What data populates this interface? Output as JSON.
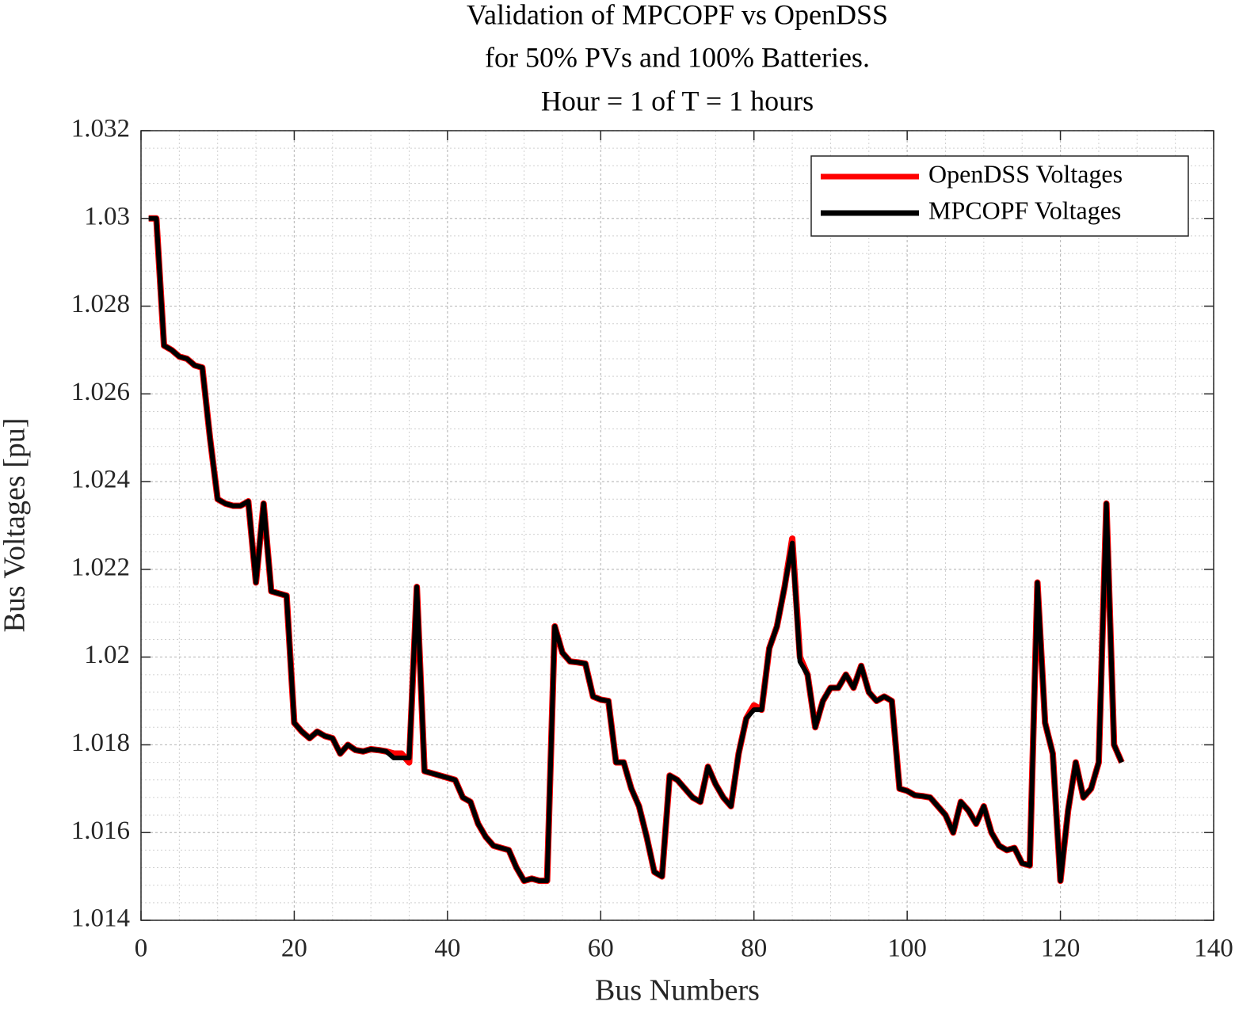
{
  "chart_data": {
    "type": "line",
    "title": [
      "Validation of MPCOPF vs OpenDSS",
      "for 50% PVs and 100% Batteries.",
      "Hour = 1 of T = 1 hours"
    ],
    "xlabel": "Bus Numbers",
    "ylabel": "Bus Voltages [pu]",
    "x": [
      1,
      2,
      3,
      4,
      5,
      6,
      7,
      8,
      9,
      10,
      11,
      12,
      13,
      14,
      15,
      16,
      17,
      18,
      19,
      20,
      21,
      22,
      23,
      24,
      25,
      26,
      27,
      28,
      29,
      30,
      31,
      32,
      33,
      34,
      35,
      36,
      37,
      38,
      39,
      40,
      41,
      42,
      43,
      44,
      45,
      46,
      47,
      48,
      49,
      50,
      51,
      52,
      53,
      54,
      55,
      56,
      57,
      58,
      59,
      60,
      61,
      62,
      63,
      64,
      65,
      66,
      67,
      68,
      69,
      70,
      71,
      72,
      73,
      74,
      75,
      76,
      77,
      78,
      79,
      80,
      81,
      82,
      83,
      84,
      85,
      86,
      87,
      88,
      89,
      90,
      91,
      92,
      93,
      94,
      95,
      96,
      97,
      98,
      99,
      100,
      101,
      102,
      103,
      104,
      105,
      106,
      107,
      108,
      109,
      110,
      111,
      112,
      113,
      114,
      115,
      116,
      117,
      118,
      119,
      120,
      121,
      122,
      123,
      124,
      125,
      126,
      127,
      128
    ],
    "series": [
      {
        "name": "OpenDSS Voltages",
        "color": "#ff0000",
        "values": [
          1.03,
          1.03,
          1.0271,
          1.027,
          1.02685,
          1.0268,
          1.02665,
          1.0266,
          1.025,
          1.0236,
          1.0235,
          1.02345,
          1.02345,
          1.02355,
          1.0217,
          1.0235,
          1.0215,
          1.02145,
          1.0214,
          1.0185,
          1.0183,
          1.01815,
          1.0183,
          1.0182,
          1.01815,
          1.0178,
          1.018,
          1.01788,
          1.01785,
          1.0179,
          1.01788,
          1.01785,
          1.0178,
          1.0178,
          1.0176,
          1.0216,
          1.0174,
          1.01735,
          1.0173,
          1.01725,
          1.0172,
          1.0168,
          1.0167,
          1.0162,
          1.0159,
          1.0157,
          1.01565,
          1.0156,
          1.0152,
          1.0149,
          1.01495,
          1.0149,
          1.0149,
          1.0207,
          1.0201,
          1.0199,
          1.01988,
          1.01985,
          1.0191,
          1.01903,
          1.019,
          1.0176,
          1.0176,
          1.017,
          1.0166,
          1.0159,
          1.0151,
          1.015,
          1.0173,
          1.0172,
          1.017,
          1.0168,
          1.0167,
          1.0175,
          1.0171,
          1.0168,
          1.0166,
          1.0178,
          1.0186,
          1.0189,
          1.0188,
          1.0202,
          1.0207,
          1.0216,
          1.0227,
          1.02,
          1.0196,
          1.0184,
          1.019,
          1.0193,
          1.0193,
          1.0196,
          1.0193,
          1.0198,
          1.0192,
          1.019,
          1.0191,
          1.019,
          1.017,
          1.01695,
          1.01685,
          1.01683,
          1.0168,
          1.0166,
          1.0164,
          1.016,
          1.0167,
          1.0165,
          1.0162,
          1.0166,
          1.016,
          1.0157,
          1.0156,
          1.01565,
          1.0153,
          1.01525,
          1.0217,
          1.0185,
          1.0178,
          1.0149,
          1.0165,
          1.0176,
          1.0168,
          1.017,
          1.0176,
          1.0235,
          1.018,
          1.0176
        ]
      },
      {
        "name": "MPCOPF Voltages",
        "color": "#000000",
        "values": [
          1.03,
          1.03,
          1.0271,
          1.027,
          1.02685,
          1.0268,
          1.02665,
          1.0266,
          1.025,
          1.0236,
          1.0235,
          1.02345,
          1.02345,
          1.02355,
          1.0217,
          1.0235,
          1.0215,
          1.02145,
          1.0214,
          1.0185,
          1.0183,
          1.01815,
          1.0183,
          1.0182,
          1.01815,
          1.0178,
          1.018,
          1.01788,
          1.01785,
          1.0179,
          1.01788,
          1.01785,
          1.0177,
          1.0177,
          1.0177,
          1.0216,
          1.0174,
          1.01735,
          1.0173,
          1.01725,
          1.0172,
          1.0168,
          1.0167,
          1.0162,
          1.0159,
          1.0157,
          1.01565,
          1.0156,
          1.0152,
          1.0149,
          1.01495,
          1.0149,
          1.0149,
          1.0207,
          1.0201,
          1.0199,
          1.01988,
          1.01985,
          1.0191,
          1.01903,
          1.019,
          1.0176,
          1.0176,
          1.017,
          1.0166,
          1.0159,
          1.0151,
          1.015,
          1.0173,
          1.0172,
          1.017,
          1.0168,
          1.0167,
          1.0175,
          1.0171,
          1.0168,
          1.0166,
          1.0178,
          1.0186,
          1.0188,
          1.0188,
          1.0202,
          1.0207,
          1.0216,
          1.0226,
          1.0199,
          1.0196,
          1.0184,
          1.019,
          1.0193,
          1.0193,
          1.0196,
          1.0193,
          1.0198,
          1.0192,
          1.019,
          1.0191,
          1.019,
          1.017,
          1.01695,
          1.01685,
          1.01683,
          1.0168,
          1.0166,
          1.0164,
          1.016,
          1.0167,
          1.0165,
          1.0162,
          1.0166,
          1.016,
          1.0157,
          1.0156,
          1.01565,
          1.0153,
          1.01525,
          1.0217,
          1.0185,
          1.0178,
          1.0149,
          1.0165,
          1.0176,
          1.0168,
          1.017,
          1.0176,
          1.0235,
          1.018,
          1.0176
        ]
      }
    ],
    "xlim": [
      0,
      140
    ],
    "xticks": [
      0,
      20,
      40,
      60,
      80,
      100,
      120,
      140
    ],
    "ylim": [
      1.014,
      1.032
    ],
    "yticks": [
      1.014,
      1.016,
      1.018,
      1.02,
      1.022,
      1.024,
      1.026,
      1.028,
      1.03,
      1.032
    ],
    "grid": true,
    "minor_grid": true,
    "legend": "upper right"
  }
}
